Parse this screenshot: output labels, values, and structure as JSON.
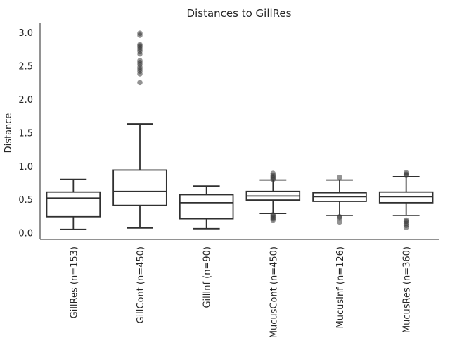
{
  "chart_data": {
    "type": "box",
    "title": "Distances to GillRes",
    "xlabel": "",
    "ylabel": "Distance",
    "ylim": [
      -0.1,
      3.15
    ],
    "yticks": [
      0.0,
      0.5,
      1.0,
      1.5,
      2.0,
      2.5,
      3.0
    ],
    "ytick_labels": [
      "0.0",
      "0.5",
      "1.0",
      "1.5",
      "2.0",
      "2.5",
      "3.0"
    ],
    "grid": false,
    "categories": [
      "GillRes (n=153)",
      "GillCont (n=450)",
      "GillInf (n=90)",
      "MucusCont (n=450)",
      "MucusInf (n=126)",
      "MucusRes (n=360)"
    ],
    "boxes": [
      {
        "whislo": 0.05,
        "q1": 0.24,
        "med": 0.52,
        "q3": 0.61,
        "whishi": 0.8,
        "fliers": []
      },
      {
        "whislo": 0.07,
        "q1": 0.41,
        "med": 0.62,
        "q3": 0.94,
        "whishi": 1.63,
        "fliers": [
          2.25,
          2.38,
          2.42,
          2.45,
          2.48,
          2.52,
          2.55,
          2.58,
          2.68,
          2.72,
          2.75,
          2.78,
          2.8,
          2.82,
          2.96,
          2.99
        ]
      },
      {
        "whislo": 0.06,
        "q1": 0.21,
        "med": 0.45,
        "q3": 0.57,
        "whishi": 0.7,
        "fliers": []
      },
      {
        "whislo": 0.29,
        "q1": 0.49,
        "med": 0.55,
        "q3": 0.62,
        "whishi": 0.79,
        "fliers": [
          0.19,
          0.21,
          0.23,
          0.25,
          0.27,
          0.8,
          0.82,
          0.84,
          0.86,
          0.89
        ]
      },
      {
        "whislo": 0.26,
        "q1": 0.47,
        "med": 0.54,
        "q3": 0.6,
        "whishi": 0.79,
        "fliers": [
          0.16,
          0.22,
          0.24,
          0.83
        ]
      },
      {
        "whislo": 0.26,
        "q1": 0.45,
        "med": 0.54,
        "q3": 0.61,
        "whishi": 0.84,
        "fliers": [
          0.08,
          0.11,
          0.14,
          0.17,
          0.19,
          0.86,
          0.88,
          0.9
        ]
      }
    ],
    "colors": {
      "line": "#303030",
      "flier": "#3a3a3a",
      "axis": "#262626"
    }
  }
}
